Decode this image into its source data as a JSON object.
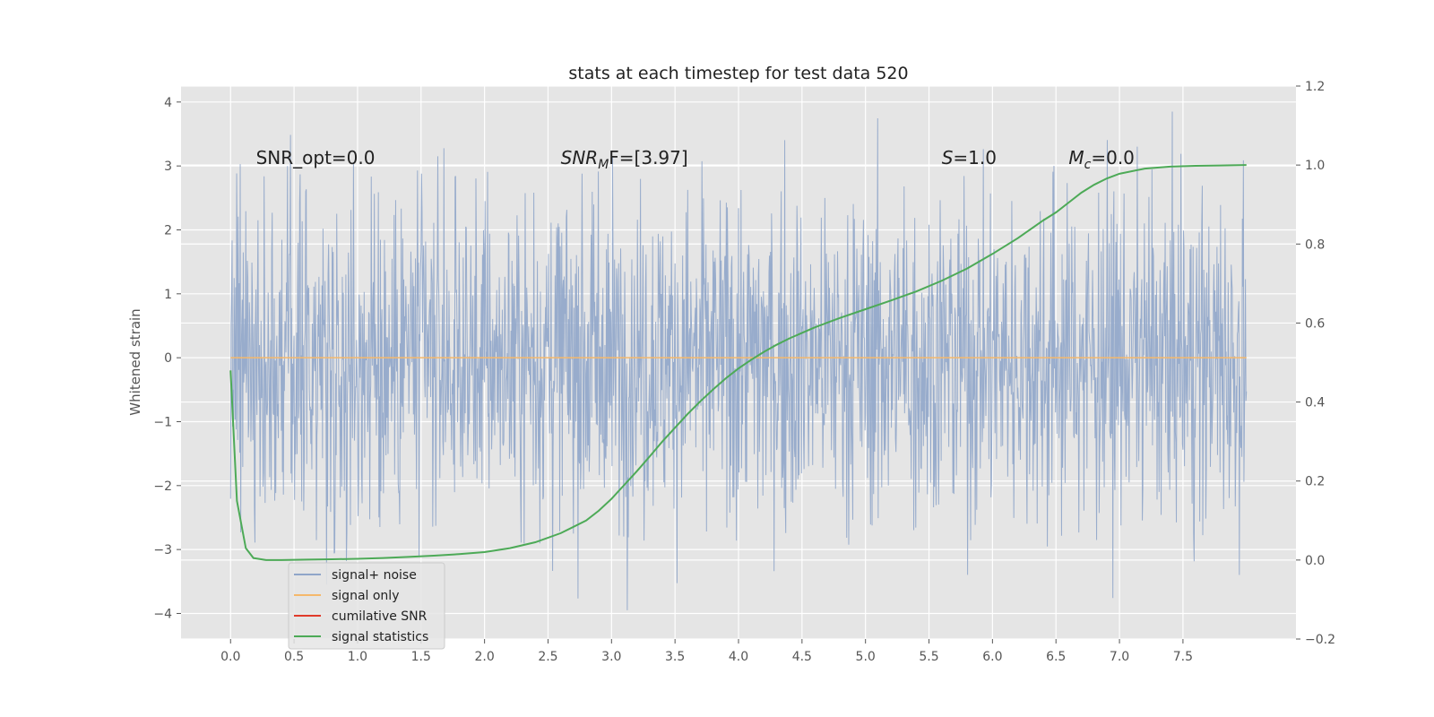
{
  "chart_data": {
    "type": "line",
    "title": "stats at each timestep for test data 520",
    "ylabel": "Whitened strain",
    "ylabel_right": "",
    "xlim": [
      -0.39,
      8.39
    ],
    "ylim": [
      -4.4,
      4.25
    ],
    "ylim_right": [
      -0.2,
      1.2
    ],
    "x_ticks": [
      "0.0",
      "0.5",
      "1.0",
      "1.5",
      "2.0",
      "2.5",
      "3.0",
      "3.5",
      "4.0",
      "4.5",
      "5.0",
      "5.5",
      "6.0",
      "6.5",
      "7.0",
      "7.5"
    ],
    "y_ticks": [
      "4",
      "3",
      "2",
      "1",
      "0",
      "−1",
      "−2",
      "−3",
      "−4"
    ],
    "y_ticks_right": [
      "1.2",
      "1.0",
      "0.8",
      "0.6",
      "0.4",
      "0.2",
      "0.0",
      "−0.2"
    ],
    "grid": true,
    "legend_placement": "lower-left",
    "annotations": [
      {
        "text": "SNR_opt=0.0",
        "x": 0.2
      },
      {
        "text": "SNR",
        "sub": "M",
        "suffix": "F=[3.97]",
        "italic": true,
        "x": 2.6
      },
      {
        "text": "S",
        "suffix": "=1.0",
        "italic": true,
        "x": 5.6
      },
      {
        "text": "M",
        "sub": "c",
        "suffix": "=0.0",
        "italic": true,
        "x": 6.6
      }
    ],
    "series": [
      {
        "name": "signal+ noise",
        "color": "#8fa5c9",
        "kind": "noise",
        "x_range": [
          0.0,
          8.0
        ],
        "approx_amplitude": 1.3,
        "approx_extremes": [
          -3.95,
          3.85
        ]
      },
      {
        "name": "signal only",
        "color": "#f5b86b",
        "kind": "constant",
        "x": [
          0.0,
          8.0
        ],
        "y": [
          0.0,
          0.0
        ]
      },
      {
        "name": "cumilative SNR",
        "color": "#e03a2a",
        "kind": "line",
        "x": [],
        "y": []
      },
      {
        "name": "signal statistics",
        "color": "#4daa57",
        "axis": "right",
        "x": [
          0.0,
          0.05,
          0.12,
          0.18,
          0.28,
          0.4,
          0.6,
          0.8,
          1.0,
          1.2,
          1.4,
          1.6,
          1.8,
          2.0,
          2.2,
          2.4,
          2.6,
          2.8,
          2.9,
          3.0,
          3.1,
          3.2,
          3.3,
          3.4,
          3.5,
          3.6,
          3.7,
          3.8,
          3.9,
          4.0,
          4.1,
          4.2,
          4.3,
          4.4,
          4.5,
          4.6,
          4.7,
          4.8,
          5.0,
          5.2,
          5.4,
          5.6,
          5.8,
          6.0,
          6.2,
          6.4,
          6.5,
          6.6,
          6.7,
          6.8,
          6.9,
          7.0,
          7.2,
          7.4,
          7.6,
          7.8,
          8.0
        ],
        "y": [
          0.48,
          0.15,
          0.03,
          0.005,
          0.0,
          0.0,
          0.001,
          0.002,
          0.003,
          0.005,
          0.008,
          0.011,
          0.015,
          0.02,
          0.03,
          0.045,
          0.068,
          0.1,
          0.125,
          0.155,
          0.19,
          0.225,
          0.262,
          0.3,
          0.335,
          0.37,
          0.402,
          0.432,
          0.46,
          0.485,
          0.507,
          0.527,
          0.545,
          0.561,
          0.575,
          0.589,
          0.601,
          0.613,
          0.635,
          0.657,
          0.68,
          0.707,
          0.738,
          0.775,
          0.815,
          0.86,
          0.88,
          0.905,
          0.93,
          0.95,
          0.966,
          0.978,
          0.991,
          0.996,
          0.998,
          0.999,
          1.0
        ]
      }
    ]
  }
}
